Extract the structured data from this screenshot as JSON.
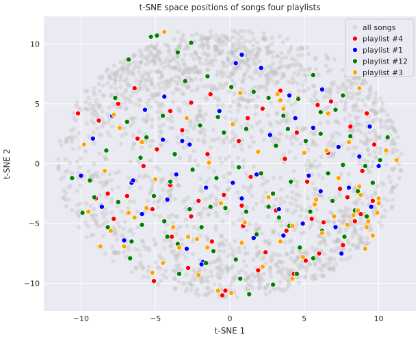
{
  "chart_data": {
    "type": "scatter",
    "title": "t-SNE space positions of songs four playlists",
    "xlabel": "t-SNE 1",
    "ylabel": "t-SNE 2",
    "xlim": [
      -12.5,
      12.5
    ],
    "ylim": [
      -12.3,
      12.3
    ],
    "xticks": [
      -10,
      -5,
      0,
      5,
      10
    ],
    "yticks": [
      -10,
      -5,
      0,
      5,
      10
    ],
    "grid": true,
    "background": "#eaeaf2",
    "legend_position": "top-right",
    "series": [
      {
        "name": "all songs",
        "color": "#bdbdbd",
        "opacity": 0.35,
        "style": "background-cloud",
        "points": [
          [
            -4.8,
            10.8
          ],
          [
            -3.5,
            11.0
          ],
          [
            -2.5,
            10.2
          ],
          [
            -1.0,
            9.8
          ],
          [
            0.5,
            10.0
          ],
          [
            2.0,
            9.6
          ],
          [
            -6.0,
            9.0
          ],
          [
            -4.0,
            8.6
          ],
          [
            -2.0,
            8.8
          ],
          [
            1.0,
            8.5
          ],
          [
            3.5,
            8.8
          ],
          [
            -7.5,
            7.8
          ],
          [
            -5.5,
            7.5
          ],
          [
            -8.5,
            6.5
          ],
          [
            -9.5,
            5.5
          ],
          [
            -10.5,
            4.2
          ],
          [
            -6.5,
            6.0
          ],
          [
            -3.0,
            6.8
          ],
          [
            0.0,
            7.2
          ],
          [
            2.5,
            7.0
          ],
          [
            5.0,
            7.4
          ],
          [
            7.0,
            6.8
          ],
          [
            8.5,
            5.8
          ],
          [
            9.5,
            4.5
          ],
          [
            10.5,
            3.5
          ],
          [
            11.0,
            2.0
          ],
          [
            11.3,
            0.5
          ],
          [
            -11.5,
            -0.5
          ],
          [
            -10.8,
            -2.0
          ],
          [
            -9.5,
            -4.0
          ],
          [
            -8.5,
            -6.0
          ],
          [
            -7.5,
            -7.5
          ],
          [
            -6.0,
            -8.5
          ],
          [
            -4.5,
            -9.3
          ],
          [
            -3.0,
            -10.0
          ],
          [
            -1.5,
            -10.8
          ],
          [
            0.0,
            -10.5
          ],
          [
            1.5,
            -9.8
          ],
          [
            3.0,
            -10.5
          ],
          [
            4.5,
            -9.5
          ],
          [
            6.0,
            -8.8
          ],
          [
            7.5,
            -8.0
          ],
          [
            8.5,
            -7.0
          ],
          [
            9.5,
            -5.5
          ],
          [
            10.2,
            -3.5
          ],
          [
            10.8,
            -1.5
          ],
          [
            -7.0,
            2.5
          ],
          [
            -4.0,
            3.0
          ],
          [
            -1.0,
            2.0
          ],
          [
            2.0,
            3.5
          ],
          [
            4.5,
            2.0
          ],
          [
            7.0,
            1.5
          ],
          [
            -6.0,
            -2.0
          ],
          [
            -3.0,
            -3.0
          ],
          [
            0.0,
            -2.0
          ],
          [
            3.0,
            -3.5
          ],
          [
            6.0,
            -2.5
          ],
          [
            8.0,
            -4.5
          ],
          [
            -2.0,
            -6.0
          ],
          [
            1.0,
            -7.0
          ],
          [
            4.0,
            -6.5
          ]
        ]
      },
      {
        "name": "playlist #4",
        "color": "#ff0000",
        "points": [
          [
            -10.2,
            4.2
          ],
          [
            -8.8,
            3.6
          ],
          [
            -7.5,
            5.0
          ],
          [
            -6.2,
            2.1
          ],
          [
            -5.8,
            -0.2
          ],
          [
            -4.9,
            1.2
          ],
          [
            -4.0,
            -1.8
          ],
          [
            -3.2,
            2.8
          ],
          [
            -2.1,
            -3.1
          ],
          [
            -1.5,
            0.8
          ],
          [
            -0.4,
            -2.6
          ],
          [
            0.6,
            1.9
          ],
          [
            1.4,
            -1.1
          ],
          [
            2.2,
            4.6
          ],
          [
            3.1,
            -3.9
          ],
          [
            3.7,
            0.4
          ],
          [
            4.5,
            2.6
          ],
          [
            5.2,
            -1.5
          ],
          [
            5.9,
            4.9
          ],
          [
            6.6,
            0.9
          ],
          [
            7.4,
            -2.1
          ],
          [
            8.1,
            3.1
          ],
          [
            8.9,
            -0.6
          ],
          [
            9.7,
            1.6
          ],
          [
            -9.0,
            -2.9
          ],
          [
            -7.8,
            -4.6
          ],
          [
            -6.9,
            -2.7
          ],
          [
            -5.2,
            -3.8
          ],
          [
            -3.9,
            -6.1
          ],
          [
            -2.6,
            -4.4
          ],
          [
            -1.2,
            -6.5
          ],
          [
            0.9,
            -5.2
          ],
          [
            2.4,
            -7.4
          ],
          [
            3.8,
            -5.6
          ],
          [
            5.1,
            -8.1
          ],
          [
            6.3,
            -4.9
          ],
          [
            7.6,
            -6.8
          ],
          [
            8.8,
            -4.2
          ],
          [
            9.6,
            -3.1
          ],
          [
            -5.1,
            -9.8
          ],
          [
            -2.8,
            -8.7
          ],
          [
            -0.3,
            -10.6
          ],
          [
            1.9,
            -8.9
          ],
          [
            4.3,
            -9.2
          ],
          [
            6.0,
            -7.5
          ],
          [
            -0.5,
            -11.0
          ],
          [
            -2.6,
            5.1
          ],
          [
            1.2,
            3.8
          ],
          [
            4.6,
            5.5
          ],
          [
            9.2,
            4.2
          ],
          [
            -6.4,
            6.3
          ],
          [
            -4.0,
            4.4
          ],
          [
            -1.3,
            5.8
          ],
          [
            3.4,
            6.1
          ],
          [
            6.8,
            5.2
          ],
          [
            7.9,
            -2.8
          ],
          [
            8.4,
            -4.8
          ],
          [
            -8.2,
            -2.5
          ],
          [
            5.5,
            -4.6
          ],
          [
            0.8,
            -3.5
          ]
        ]
      },
      {
        "name": "playlist #1",
        "color": "#0000ff",
        "points": [
          [
            -10.0,
            -1.0
          ],
          [
            -9.2,
            2.1
          ],
          [
            -7.9,
            4.0
          ],
          [
            -6.6,
            -1.6
          ],
          [
            -5.7,
            4.5
          ],
          [
            -4.5,
            2.0
          ],
          [
            -3.6,
            -0.9
          ],
          [
            -2.7,
            1.6
          ],
          [
            -1.6,
            -2.0
          ],
          [
            -0.7,
            4.4
          ],
          [
            0.4,
            8.4
          ],
          [
            0.8,
            9.1
          ],
          [
            1.8,
            -0.9
          ],
          [
            2.7,
            2.4
          ],
          [
            3.6,
            -6.0
          ],
          [
            4.4,
            3.8
          ],
          [
            5.3,
            -1.0
          ],
          [
            6.2,
            6.2
          ],
          [
            7.1,
            -5.3
          ],
          [
            8.0,
            -2.0
          ],
          [
            8.7,
            0.6
          ],
          [
            9.5,
            -3.6
          ],
          [
            10.0,
            -0.2
          ],
          [
            -8.6,
            -3.6
          ],
          [
            -7.1,
            -6.4
          ],
          [
            -5.9,
            -4.2
          ],
          [
            -4.2,
            -3.0
          ],
          [
            -2.9,
            -7.1
          ],
          [
            -1.8,
            -8.2
          ],
          [
            0.2,
            -1.6
          ],
          [
            1.6,
            -6.2
          ],
          [
            3.3,
            -3.8
          ],
          [
            4.9,
            -5.0
          ],
          [
            6.1,
            -2.3
          ],
          [
            7.3,
            1.4
          ],
          [
            -3.2,
            1.9
          ],
          [
            2.1,
            8.0
          ],
          [
            5.6,
            3.0
          ],
          [
            -4.4,
            5.6
          ],
          [
            -1.9,
            -8.4
          ],
          [
            7.5,
            -7.5
          ],
          [
            0.8,
            -2.9
          ],
          [
            -6.5,
            -1.4
          ],
          [
            9.4,
            3.1
          ],
          [
            4.0,
            5.7
          ]
        ]
      },
      {
        "name": "playlist #12",
        "color": "#008000",
        "points": [
          [
            -10.6,
            -1.2
          ],
          [
            -9.4,
            -1.4
          ],
          [
            -8.3,
            1.1
          ],
          [
            -7.7,
            5.5
          ],
          [
            -6.9,
            3.5
          ],
          [
            -6.0,
            0.5
          ],
          [
            -5.3,
            10.6
          ],
          [
            -4.9,
            10.7
          ],
          [
            -4.5,
            4.0
          ],
          [
            -4.0,
            -1.5
          ],
          [
            -3.5,
            9.3
          ],
          [
            -3.0,
            6.9
          ],
          [
            -2.5,
            -0.5
          ],
          [
            -2.0,
            3.2
          ],
          [
            -1.5,
            7.3
          ],
          [
            -0.9,
            -1.2
          ],
          [
            -0.4,
            2.6
          ],
          [
            0.1,
            6.4
          ],
          [
            0.6,
            -0.3
          ],
          [
            1.1,
            2.9
          ],
          [
            1.6,
            6.0
          ],
          [
            2.1,
            -0.8
          ],
          [
            2.6,
            5.5
          ],
          [
            3.1,
            1.5
          ],
          [
            3.6,
            4.0
          ],
          [
            4.1,
            -1.5
          ],
          [
            4.6,
            5.4
          ],
          [
            5.1,
            1.9
          ],
          [
            5.6,
            7.4
          ],
          [
            6.1,
            2.5
          ],
          [
            6.6,
            -0.8
          ],
          [
            7.1,
            4.5
          ],
          [
            7.6,
            -0.1
          ],
          [
            8.1,
            2.3
          ],
          [
            8.6,
            -2.3
          ],
          [
            9.1,
            -0.2
          ],
          [
            9.6,
            -1.6
          ],
          [
            10.1,
            0.3
          ],
          [
            10.6,
            2.2
          ],
          [
            -9.9,
            -4.1
          ],
          [
            -9.1,
            -2.8
          ],
          [
            -8.2,
            -5.3
          ],
          [
            -7.5,
            -3.2
          ],
          [
            -6.6,
            -6.5
          ],
          [
            -5.9,
            -5.1
          ],
          [
            -5.1,
            -2.7
          ],
          [
            -4.4,
            -4.8
          ],
          [
            -3.5,
            -6.7
          ],
          [
            -2.7,
            -3.8
          ],
          [
            -1.9,
            -5.3
          ],
          [
            -1.1,
            -7.3
          ],
          [
            -0.3,
            -3.7
          ],
          [
            0.4,
            -8.0
          ],
          [
            1.1,
            -4.0
          ],
          [
            1.8,
            -5.9
          ],
          [
            2.6,
            -3.6
          ],
          [
            3.3,
            -4.5
          ],
          [
            4.0,
            -5.2
          ],
          [
            4.7,
            -7.0
          ],
          [
            5.4,
            -4.0
          ],
          [
            6.2,
            -5.6
          ],
          [
            6.9,
            -3.1
          ],
          [
            7.7,
            -6.1
          ],
          [
            8.4,
            -3.9
          ],
          [
            9.2,
            -4.4
          ],
          [
            -6.7,
            -7.9
          ],
          [
            -4.2,
            -6.1
          ],
          [
            -1.6,
            -8.3
          ],
          [
            0.7,
            -9.6
          ],
          [
            2.9,
            -10.1
          ],
          [
            4.5,
            -9.2
          ],
          [
            -3.4,
            -9.2
          ],
          [
            1.3,
            -10.9
          ],
          [
            5.6,
            -7.9
          ],
          [
            -0.8,
            3.9
          ],
          [
            3.9,
            2.9
          ],
          [
            -5.6,
            2.2
          ],
          [
            6.1,
            4.3
          ],
          [
            2.9,
            -2.5
          ],
          [
            -3.7,
            0.8
          ],
          [
            -2.6,
            10.1
          ],
          [
            -6.8,
            8.7
          ],
          [
            7.6,
            5.7
          ],
          [
            -1.3,
            -3.6
          ]
        ]
      },
      {
        "name": "playlist #3",
        "color": "#ffa500",
        "points": [
          [
            -9.8,
            1.6
          ],
          [
            -8.4,
            -0.6
          ],
          [
            -7.4,
            3.0
          ],
          [
            -6.8,
            -4.1
          ],
          [
            -5.9,
            1.8
          ],
          [
            -5.0,
            -1.3
          ],
          [
            -4.4,
            11.0
          ],
          [
            -3.8,
            -5.3
          ],
          [
            -2.9,
            3.8
          ],
          [
            -2.2,
            -6.3
          ],
          [
            -1.4,
            0.1
          ],
          [
            -0.6,
            -3.3
          ],
          [
            0.2,
            3.3
          ],
          [
            1.0,
            -4.9
          ],
          [
            1.9,
            1.0
          ],
          [
            2.6,
            -2.8
          ],
          [
            3.4,
            5.3
          ],
          [
            4.2,
            -5.2
          ],
          [
            5.0,
            0.9
          ],
          [
            5.8,
            -3.0
          ],
          [
            6.6,
            4.2
          ],
          [
            7.3,
            -1.2
          ],
          [
            8.0,
            1.8
          ],
          [
            8.7,
            -1.9
          ],
          [
            9.3,
            -4.8
          ],
          [
            9.6,
            -6.0
          ],
          [
            10.0,
            -3.3
          ],
          [
            10.5,
            1.1
          ],
          [
            11.2,
            0.3
          ],
          [
            -9.5,
            -4.0
          ],
          [
            -8.0,
            -5.6
          ],
          [
            -7.1,
            -6.9
          ],
          [
            -6.4,
            -4.5
          ],
          [
            -4.5,
            -8.3
          ],
          [
            -3.4,
            -7.0
          ],
          [
            -2.1,
            -9.3
          ],
          [
            -0.8,
            -10.6
          ],
          [
            0.8,
            -6.6
          ],
          [
            2.2,
            -8.6
          ],
          [
            3.4,
            -6.5
          ],
          [
            4.9,
            -7.8
          ],
          [
            6.2,
            -5.8
          ],
          [
            7.9,
            -5.1
          ],
          [
            8.6,
            -3.9
          ],
          [
            9.2,
            -5.3
          ],
          [
            9.1,
            -7.1
          ],
          [
            -8.7,
            -6.9
          ],
          [
            -5.2,
            -9.1
          ],
          [
            -2.8,
            -6.1
          ],
          [
            0.1,
            -10.8
          ],
          [
            4.2,
            -9.6
          ],
          [
            5.7,
            -3.4
          ],
          [
            7.0,
            -4.4
          ],
          [
            8.3,
            -4.3
          ],
          [
            9.9,
            -4.1
          ],
          [
            8.8,
            -2.6
          ],
          [
            6.5,
            1.1
          ],
          [
            3.6,
            4.6
          ],
          [
            0.7,
            5.9
          ],
          [
            -1.5,
            -7.0
          ],
          [
            -5.6,
            -3.7
          ],
          [
            -7.8,
            4.1
          ],
          [
            3.2,
            5.8
          ],
          [
            8.7,
            6.3
          ],
          [
            10.0,
            -2.9
          ]
        ]
      }
    ]
  }
}
